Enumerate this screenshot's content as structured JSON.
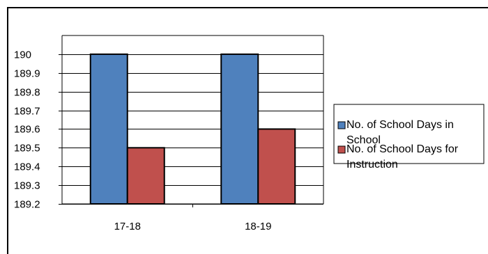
{
  "chart_data": {
    "type": "bar",
    "categories": [
      "17-18",
      "18-19"
    ],
    "series": [
      {
        "name": "No. of School Days in School",
        "values": [
          190,
          190
        ],
        "color": "#4f81bd"
      },
      {
        "name": "No. of School Days for Instruction",
        "values": [
          189.5,
          189.6
        ],
        "color": "#c0504d"
      }
    ],
    "title": "",
    "xlabel": "",
    "ylabel": "",
    "ylim": [
      189.2,
      190.1
    ],
    "yticks": [
      189.2,
      189.3,
      189.4,
      189.5,
      189.6,
      189.7,
      189.8,
      189.9,
      190
    ],
    "grid": true,
    "legend": "right"
  }
}
